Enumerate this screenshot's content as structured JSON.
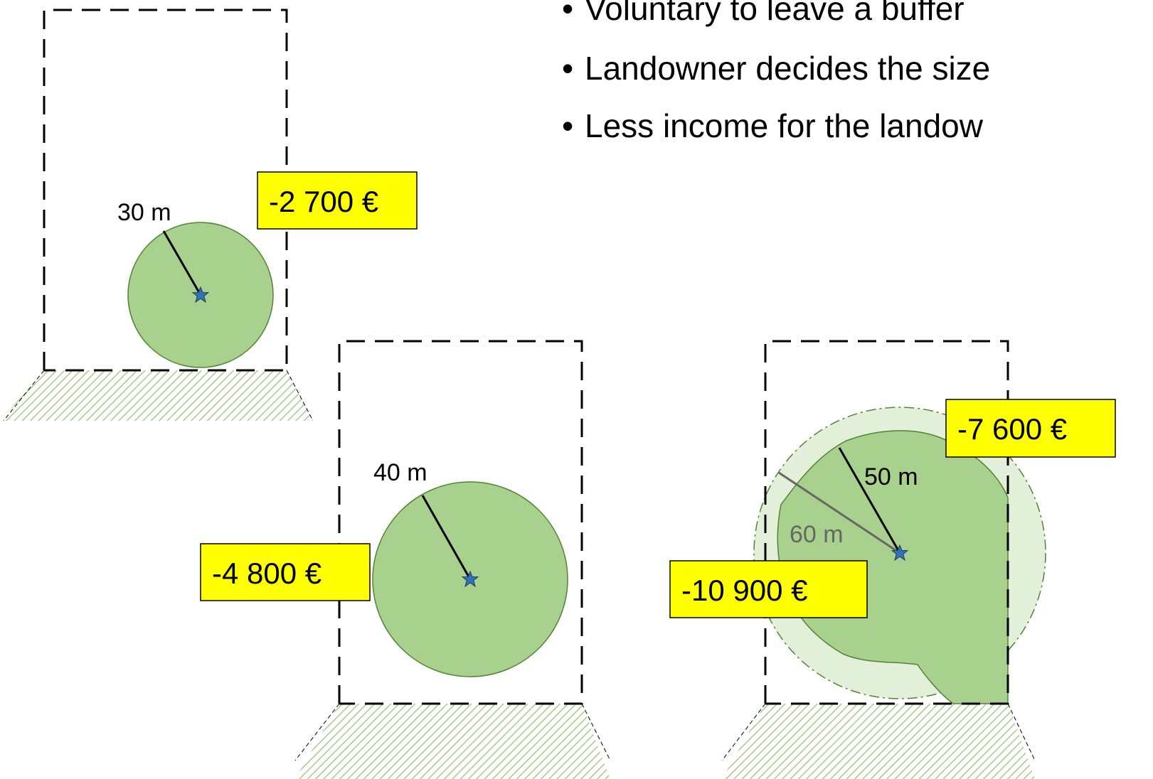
{
  "bullets": [
    "Voluntary to leave a buffer",
    "Landowner decides the size",
    "Less income for the landow"
  ],
  "panels": [
    {
      "radius_label": "30 m",
      "cost": "-2 700 €"
    },
    {
      "radius_label": "40 m",
      "cost": "-4 800 €"
    },
    {
      "radius_label": "50 m",
      "outer_radius_label": "60 m",
      "cost": "-7 600 €",
      "outer_cost": "-10 900 €"
    }
  ]
}
